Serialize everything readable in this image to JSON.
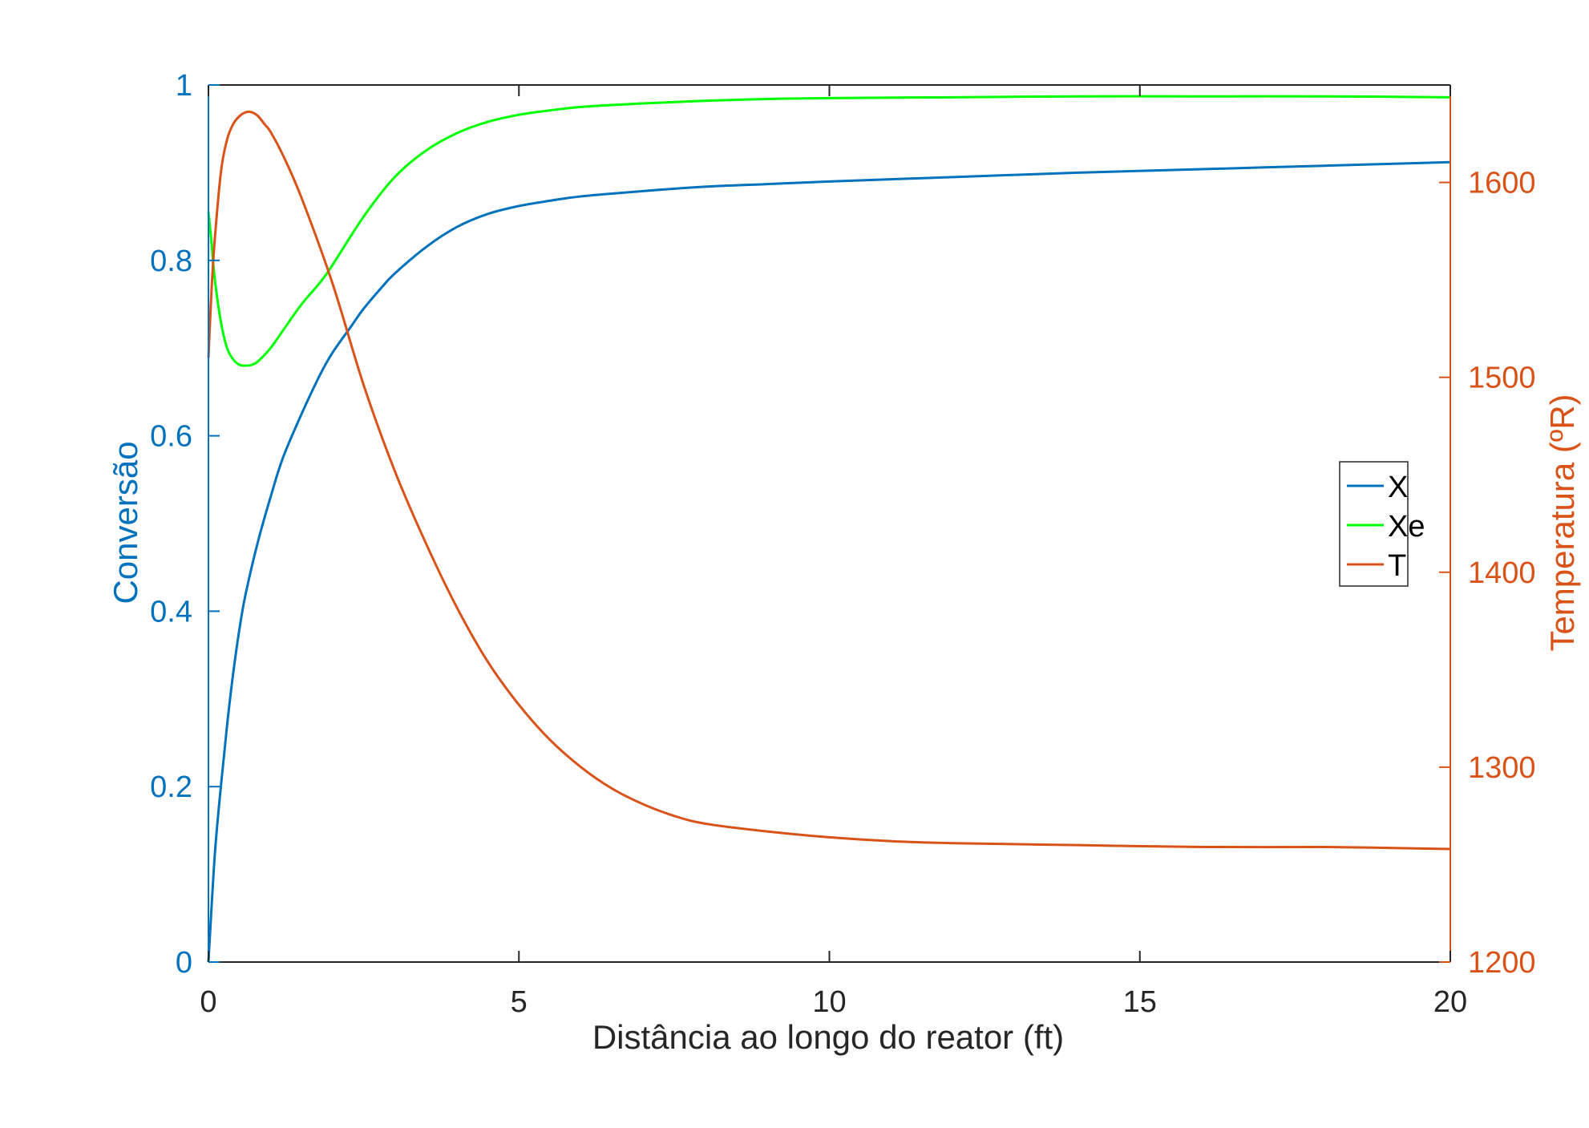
{
  "colors": {
    "X": "#0072BD",
    "Xe": "#00FF00",
    "T": "#D95319",
    "axes": "#262626",
    "background": "#ffffff"
  },
  "chart_data": {
    "type": "line",
    "title": "",
    "xlabel": "Distância ao longo do reator (ft)",
    "ylabel_left": "Conversão",
    "ylabel_right": "Temperatura (ºR)",
    "xlim": [
      0,
      20
    ],
    "ylim_left": [
      0,
      1
    ],
    "ylim_right": [
      1200,
      1650
    ],
    "x_ticks": [
      "0",
      "5",
      "10",
      "15",
      "20"
    ],
    "y_left_ticks": [
      "0",
      "0.2",
      "0.4",
      "0.6",
      "0.8",
      "1"
    ],
    "y_right_ticks": [
      "1200",
      "1300",
      "1400",
      "1500",
      "1600"
    ],
    "grid": false,
    "legend_position": "right",
    "legend": [
      "X",
      "Xe",
      "T"
    ],
    "series": [
      {
        "name": "X",
        "axis": "left",
        "x": [
          0,
          0.1,
          0.2,
          0.3,
          0.4,
          0.5,
          0.6,
          0.8,
          1,
          1.2,
          1.5,
          1.8,
          2,
          2.3,
          2.5,
          2.8,
          3,
          3.5,
          4,
          4.5,
          5,
          5.5,
          6,
          7,
          8,
          9,
          10,
          12,
          14,
          16,
          18,
          20
        ],
        "y": [
          0,
          0.12,
          0.2,
          0.27,
          0.33,
          0.38,
          0.42,
          0.48,
          0.53,
          0.575,
          0.625,
          0.67,
          0.695,
          0.725,
          0.745,
          0.77,
          0.785,
          0.815,
          0.838,
          0.853,
          0.862,
          0.868,
          0.873,
          0.879,
          0.884,
          0.887,
          0.89,
          0.895,
          0.9,
          0.904,
          0.908,
          0.912
        ]
      },
      {
        "name": "Xe",
        "axis": "left",
        "x": [
          0,
          0.05,
          0.1,
          0.2,
          0.3,
          0.4,
          0.5,
          0.6,
          0.7,
          0.8,
          1,
          1.2,
          1.5,
          1.8,
          2,
          2.5,
          3,
          3.5,
          4,
          4.5,
          5,
          5.5,
          6,
          7,
          8,
          9,
          10,
          12,
          14,
          16,
          18,
          20
        ],
        "y": [
          0.855,
          0.82,
          0.78,
          0.73,
          0.7,
          0.687,
          0.681,
          0.68,
          0.681,
          0.685,
          0.7,
          0.72,
          0.75,
          0.775,
          0.795,
          0.85,
          0.895,
          0.925,
          0.945,
          0.958,
          0.966,
          0.971,
          0.975,
          0.979,
          0.982,
          0.984,
          0.985,
          0.986,
          0.987,
          0.987,
          0.987,
          0.986
        ]
      },
      {
        "name": "T",
        "axis": "right",
        "x": [
          0,
          0.05,
          0.1,
          0.2,
          0.3,
          0.4,
          0.5,
          0.6,
          0.7,
          0.8,
          0.9,
          1,
          1.2,
          1.5,
          2,
          2.5,
          3,
          3.5,
          4,
          4.5,
          5,
          5.5,
          6,
          6.5,
          7,
          7.5,
          8,
          9,
          10,
          11,
          12,
          14,
          16,
          18,
          20
        ],
        "y": [
          1510,
          1545,
          1570,
          1605,
          1622,
          1630,
          1634,
          1636,
          1636,
          1634,
          1630,
          1626,
          1614,
          1592,
          1548,
          1496,
          1452,
          1415,
          1382,
          1354,
          1332,
          1314,
          1300,
          1289,
          1281,
          1275,
          1271,
          1267,
          1264,
          1262,
          1261,
          1260,
          1259,
          1259,
          1258
        ]
      }
    ]
  }
}
